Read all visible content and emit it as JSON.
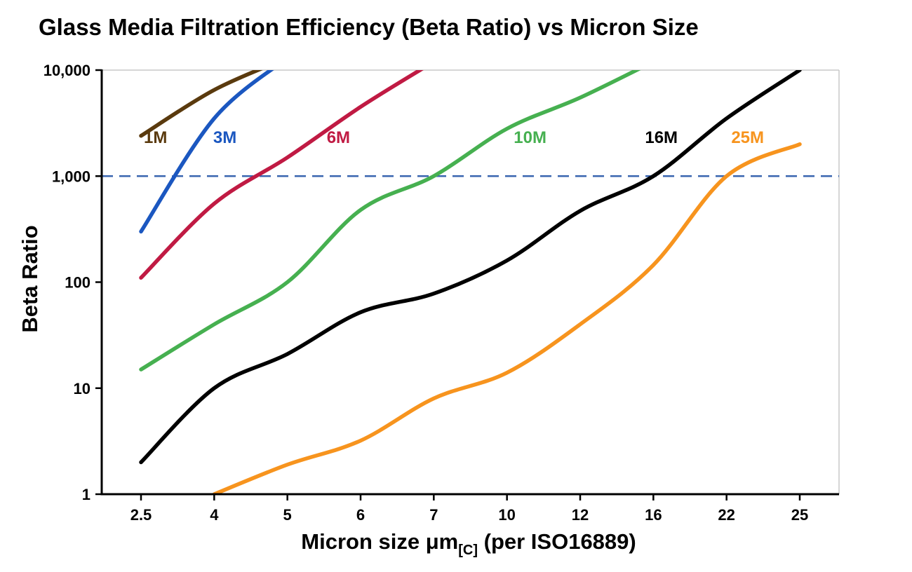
{
  "page_title": "Glass Media Filtration Efficiency (Beta Ratio) vs Micron Size",
  "chart_data": {
    "type": "line",
    "title": "Glass Media Filtration Efficiency (Beta Ratio) vs Micron Size",
    "ylabel": "Beta Ratio",
    "xlabel_pre": "Micron size μm",
    "xlabel_sub": "[C]",
    "xlabel_post": " (per ISO16889)",
    "y_scale": "log",
    "ylim": [
      1,
      10000
    ],
    "y_tick_values": [
      1,
      10,
      100,
      1000,
      10000
    ],
    "y_tick_labels": [
      "1",
      "10",
      "100",
      "1,000",
      "10,000"
    ],
    "categories": [
      "2.5",
      "4",
      "5",
      "6",
      "7",
      "10",
      "12",
      "16",
      "22",
      "25"
    ],
    "grid": false,
    "legend": "inline-colored-labels",
    "reference_line": {
      "value": 1000,
      "style": "dashed",
      "color": "#3a66b0"
    },
    "series": [
      {
        "name": "1M",
        "color": "#5a3a0e",
        "label_frac": 0.073,
        "x": [
          "2.5",
          "4",
          "5"
        ],
        "values": [
          2400,
          6500,
          13000
        ]
      },
      {
        "name": "3M",
        "color": "#1b57c0",
        "label_frac": 0.167,
        "x": [
          "2.5",
          "4",
          "5"
        ],
        "values": [
          300,
          3500,
          13000
        ]
      },
      {
        "name": "6M",
        "color": "#c01a43",
        "label_frac": 0.321,
        "x": [
          "2.5",
          "4",
          "5",
          "6",
          "7"
        ],
        "values": [
          110,
          550,
          1500,
          4500,
          12000
        ]
      },
      {
        "name": "10M",
        "color": "#46b050",
        "label_frac": 0.581,
        "x": [
          "2.5",
          "4",
          "5",
          "6",
          "7",
          "10",
          "12",
          "16"
        ],
        "values": [
          15,
          40,
          100,
          480,
          1000,
          2800,
          5500,
          12000
        ]
      },
      {
        "name": "16M",
        "color": "#000000",
        "label_frac": 0.759,
        "x": [
          "2.5",
          "4",
          "5",
          "6",
          "7",
          "10",
          "12",
          "16",
          "22",
          "25"
        ],
        "values": [
          2,
          10,
          21,
          52,
          78,
          160,
          470,
          1000,
          3500,
          10000
        ]
      },
      {
        "name": "25M",
        "color": "#f7941e",
        "label_frac": 0.876,
        "x": [
          "4",
          "5",
          "6",
          "7",
          "10",
          "12",
          "16",
          "22",
          "25"
        ],
        "values": [
          1,
          1.9,
          3.2,
          8,
          14,
          40,
          145,
          1000,
          2000
        ]
      }
    ]
  }
}
